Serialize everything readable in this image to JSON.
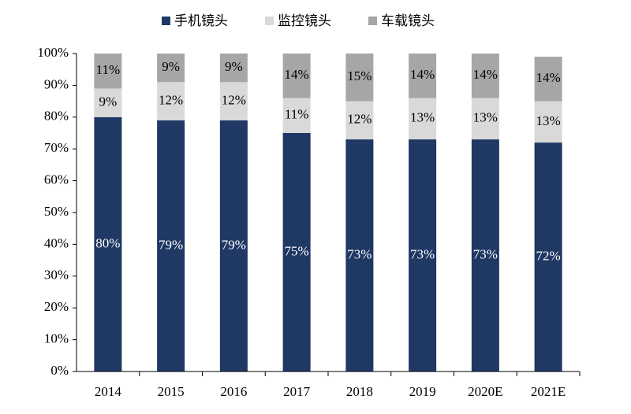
{
  "chart_data": {
    "type": "stacked_bar",
    "categories": [
      "2014",
      "2015",
      "2016",
      "2017",
      "2018",
      "2019",
      "2020E",
      "2021E"
    ],
    "series": [
      {
        "name": "手机镜头",
        "color": "#1f3864",
        "values": [
          80,
          79,
          79,
          75,
          73,
          73,
          73,
          72
        ],
        "value_labels": [
          "80%",
          "79%",
          "79%",
          "75%",
          "73%",
          "73%",
          "73%",
          "72%"
        ]
      },
      {
        "name": "监控镜头",
        "color": "#d9d9d9",
        "values": [
          9,
          12,
          12,
          11,
          12,
          13,
          13,
          13
        ],
        "value_labels": [
          "9%",
          "12%",
          "12%",
          "11%",
          "12%",
          "13%",
          "13%",
          "13%"
        ]
      },
      {
        "name": "车载镜头",
        "color": "#a6a6a6",
        "values": [
          11,
          9,
          9,
          14,
          15,
          14,
          14,
          14
        ],
        "value_labels": [
          "11%",
          "9%",
          "9%",
          "14%",
          "15%",
          "14%",
          "14%",
          "14%"
        ]
      }
    ],
    "ylim": [
      0,
      100
    ],
    "yticks": [
      {
        "value": 0,
        "label": "0%"
      },
      {
        "value": 10,
        "label": "10%"
      },
      {
        "value": 20,
        "label": "20%"
      },
      {
        "value": 30,
        "label": "30%"
      },
      {
        "value": 40,
        "label": "40%"
      },
      {
        "value": 50,
        "label": "50%"
      },
      {
        "value": 60,
        "label": "60%"
      },
      {
        "value": 70,
        "label": "70%"
      },
      {
        "value": 80,
        "label": "80%"
      },
      {
        "value": 90,
        "label": "90%"
      },
      {
        "value": 100,
        "label": "100%"
      }
    ],
    "grid": false,
    "legend": "top"
  }
}
